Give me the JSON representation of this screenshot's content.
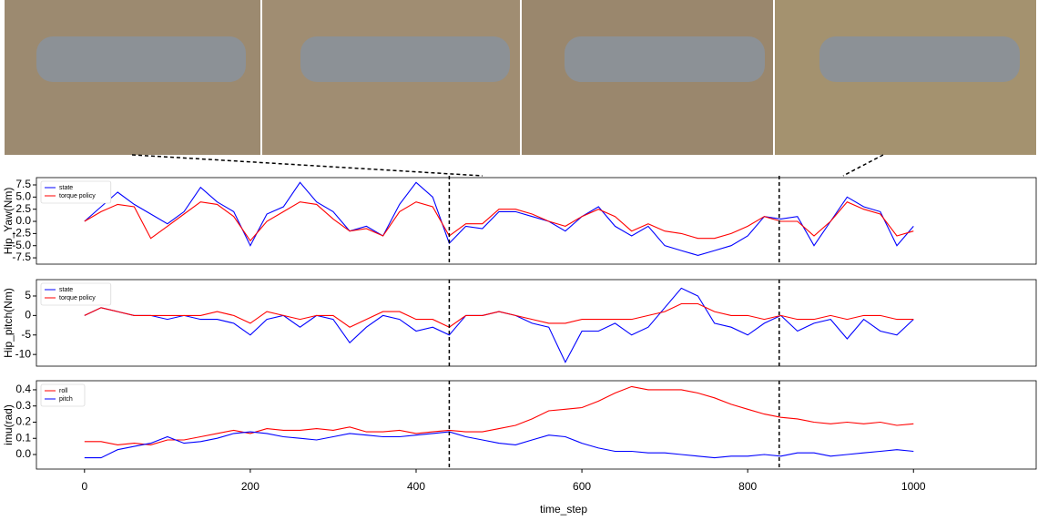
{
  "chart_data": [
    {
      "type": "line",
      "ylabel": "Hip_Yaw(Nm)",
      "x": [
        0,
        20,
        40,
        60,
        80,
        100,
        120,
        140,
        160,
        180,
        200,
        220,
        240,
        260,
        280,
        300,
        320,
        340,
        360,
        380,
        400,
        420,
        440,
        460,
        480,
        500,
        520,
        540,
        560,
        580,
        600,
        620,
        640,
        660,
        680,
        700,
        720,
        740,
        760,
        780,
        800,
        820,
        840,
        860,
        880,
        900,
        920,
        940,
        960,
        980,
        1000
      ],
      "xlim": [
        -58,
        1148
      ],
      "ylim": [
        -8.8,
        9.0
      ],
      "yticks": [
        7.5,
        {
          "value": 5,
          "label": "5.0"
        },
        2.5,
        {
          "value": 0,
          "label": "0.0"
        },
        -2.5,
        {
          "value": -5,
          "label": "-5.0"
        },
        -7.5
      ],
      "legend": "upper left",
      "snapshot_steps": [
        440,
        838
      ],
      "series": [
        {
          "name": "state",
          "color": "#0000ff",
          "values": [
            0,
            3,
            6,
            3.5,
            1.5,
            -0.5,
            2,
            7,
            4,
            2,
            -5,
            1.5,
            3,
            8,
            4,
            2,
            -2,
            -1,
            -3,
            3.5,
            8,
            5,
            -4.5,
            -1,
            -1.5,
            2,
            2,
            1,
            0,
            -2,
            1,
            3,
            -1,
            -3,
            -1,
            -5,
            -6,
            -7,
            -6,
            -5,
            -3,
            1,
            0.5,
            1,
            -5,
            0,
            5,
            3,
            2,
            -5,
            -1
          ]
        },
        {
          "name": "torque policy",
          "color": "#ff0000",
          "values": [
            0,
            2,
            3.5,
            3,
            -3.5,
            -1,
            1.5,
            4,
            3.5,
            1,
            -4,
            0,
            2,
            4,
            3.5,
            0.5,
            -2,
            -1.5,
            -3,
            2,
            4,
            3,
            -3,
            -0.5,
            -0.5,
            2.5,
            2.5,
            1.5,
            0,
            -1,
            1,
            2.5,
            1,
            -2,
            -0.5,
            -2,
            -2.5,
            -3.5,
            -3.5,
            -2.5,
            -1,
            1,
            0,
            0,
            -3,
            0,
            4,
            2.5,
            1.5,
            -3,
            -2
          ]
        }
      ]
    },
    {
      "type": "line",
      "ylabel": "Hip_pitch(Nm)",
      "x": [
        0,
        20,
        40,
        60,
        80,
        100,
        120,
        140,
        160,
        180,
        200,
        220,
        240,
        260,
        280,
        300,
        320,
        340,
        360,
        380,
        400,
        420,
        440,
        460,
        480,
        500,
        520,
        540,
        560,
        580,
        600,
        620,
        640,
        660,
        680,
        700,
        720,
        740,
        760,
        780,
        800,
        820,
        840,
        860,
        880,
        900,
        920,
        940,
        960,
        980,
        1000
      ],
      "xlim": [
        -58,
        1148
      ],
      "ylim": [
        -13.0,
        9.2
      ],
      "yticks": [
        5,
        0,
        -5,
        -10
      ],
      "legend": "upper left",
      "snapshot_steps": [
        440,
        838
      ],
      "series": [
        {
          "name": "state",
          "color": "#0000ff",
          "values": [
            0,
            2,
            1,
            0,
            0,
            -1,
            0,
            -1,
            -1,
            -2,
            -5,
            -1,
            0,
            -3,
            0,
            -1,
            -7,
            -3,
            0,
            -1,
            -4,
            -3,
            -5,
            0,
            0,
            1,
            0,
            -2,
            -3,
            -12,
            -4,
            -4,
            -2,
            -5,
            -3,
            2,
            7,
            5,
            -2,
            -3,
            -5,
            -2,
            0,
            -4,
            -2,
            -1,
            -6,
            -1,
            -4,
            -5,
            -1
          ]
        },
        {
          "name": "torque policy",
          "color": "#ff0000",
          "values": [
            0,
            2,
            1,
            0,
            0,
            0,
            0,
            0,
            1,
            0,
            -2,
            1,
            0,
            -1,
            0,
            0,
            -3,
            -1,
            1,
            1,
            -1,
            -1,
            -3,
            0,
            0,
            1,
            0,
            -1,
            -2,
            -2,
            -1,
            -1,
            -1,
            -1,
            0,
            1,
            3,
            3,
            1,
            0,
            0,
            -1,
            0,
            -1,
            -1,
            0,
            -1,
            0,
            0,
            -1,
            -1
          ]
        }
      ]
    },
    {
      "type": "line",
      "ylabel": "imu(rad)",
      "xlabel": "time_step",
      "x": [
        0,
        20,
        40,
        60,
        80,
        100,
        120,
        140,
        160,
        180,
        200,
        220,
        240,
        260,
        280,
        300,
        320,
        340,
        360,
        380,
        400,
        420,
        440,
        460,
        480,
        500,
        520,
        540,
        560,
        580,
        600,
        620,
        640,
        660,
        680,
        700,
        720,
        740,
        760,
        780,
        800,
        820,
        840,
        860,
        880,
        900,
        920,
        940,
        960,
        980,
        1000
      ],
      "xlim": [
        -58,
        1148
      ],
      "ylim": [
        -0.09,
        0.456
      ],
      "xticks": [
        0,
        200,
        400,
        600,
        800,
        1000
      ],
      "yticks": [
        {
          "value": 0,
          "label": "0.0"
        },
        0.1,
        0.2,
        0.3,
        0.4
      ],
      "legend": "upper left",
      "snapshot_steps": [
        440,
        838
      ],
      "series": [
        {
          "name": "roll",
          "color": "#ff0000",
          "values": [
            0.08,
            0.08,
            0.06,
            0.07,
            0.06,
            0.09,
            0.09,
            0.11,
            0.13,
            0.15,
            0.13,
            0.16,
            0.15,
            0.15,
            0.16,
            0.15,
            0.17,
            0.14,
            0.14,
            0.15,
            0.13,
            0.14,
            0.15,
            0.14,
            0.14,
            0.16,
            0.18,
            0.22,
            0.27,
            0.28,
            0.29,
            0.33,
            0.38,
            0.42,
            0.4,
            0.4,
            0.4,
            0.38,
            0.35,
            0.31,
            0.28,
            0.25,
            0.23,
            0.22,
            0.2,
            0.19,
            0.2,
            0.19,
            0.2,
            0.18,
            0.19
          ]
        },
        {
          "name": "pitch",
          "color": "#0000ff",
          "values": [
            -0.02,
            -0.02,
            0.03,
            0.05,
            0.07,
            0.11,
            0.07,
            0.08,
            0.1,
            0.13,
            0.14,
            0.13,
            0.11,
            0.1,
            0.09,
            0.11,
            0.13,
            0.12,
            0.11,
            0.11,
            0.12,
            0.13,
            0.14,
            0.11,
            0.09,
            0.07,
            0.06,
            0.09,
            0.12,
            0.11,
            0.07,
            0.04,
            0.02,
            0.02,
            0.01,
            0.01,
            0.0,
            -0.01,
            -0.02,
            -0.01,
            -0.01,
            0.0,
            -0.01,
            0.01,
            0.01,
            -0.01,
            0.0,
            0.01,
            0.02,
            0.03,
            0.02
          ]
        }
      ]
    }
  ]
}
